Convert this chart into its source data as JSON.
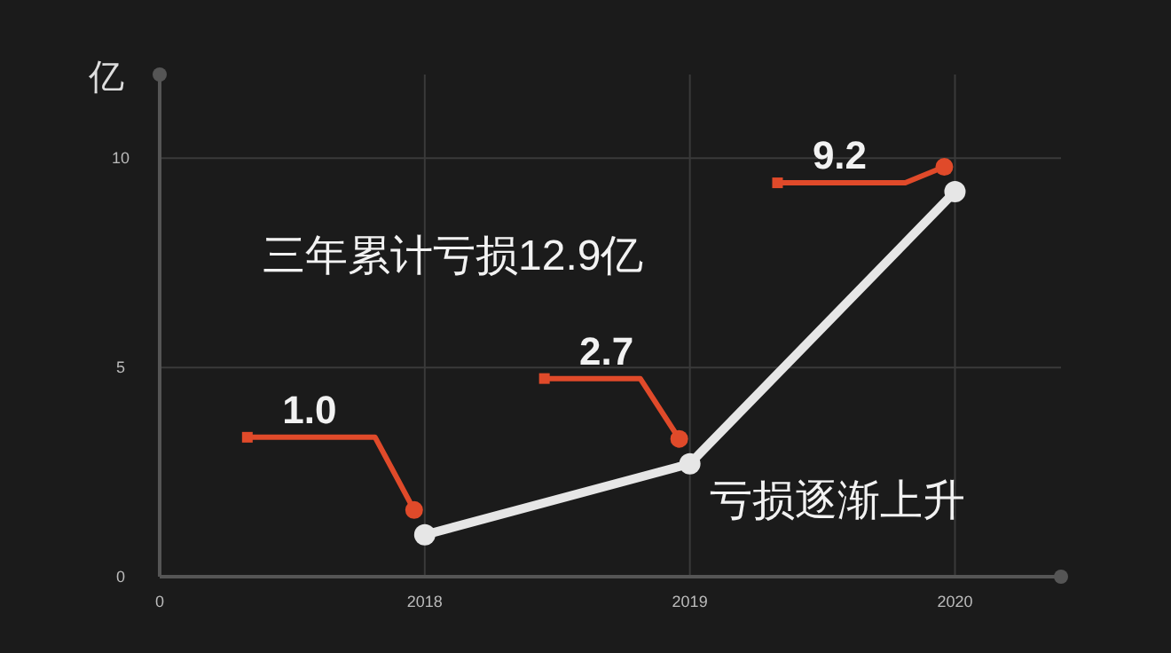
{
  "chart_data": {
    "type": "line",
    "ylabel": "亿",
    "categories": [
      "0",
      "2018",
      "2019",
      "2020"
    ],
    "series": [
      {
        "color": "#e6e6e6",
        "values": [
          null,
          1.0,
          2.7,
          9.2
        ],
        "value_labels": [
          null,
          "1.0",
          "2.7",
          "9.2"
        ]
      }
    ],
    "ylim": [
      0,
      12
    ],
    "yticks": [
      0,
      5,
      10
    ],
    "grid": true,
    "marker": "circle",
    "line_style": "solid",
    "annotations": [
      "三年累计亏损12.9亿",
      "亏损逐渐上升"
    ]
  }
}
